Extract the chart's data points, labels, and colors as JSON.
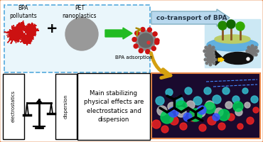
{
  "bg_color": "#ffffff",
  "dashed_box_color": "#55aadd",
  "dashed_box_fill": "#eaf6fb",
  "outer_border_color": "#e8874a",
  "arrow_green": "#22bb22",
  "arrow_blue_fill": "#b8d8ee",
  "arrow_blue_stroke": "#7aaabb",
  "arrow_gold": "#d4a010",
  "text_bpa": "BPA\npollutants",
  "text_pet": "PET\nnanoplastics",
  "text_cotransport": "co-transport of BPA",
  "text_adsorption": "BPA adsorption",
  "text_electrostatics": "electrostatics",
  "text_dispersion": "dispersion",
  "text_main": "Main stabilizing\nphysical effects are\nelectrostatics and\ndispersion",
  "red_blob_color": "#cc1111",
  "pet_gray": "#999999",
  "nano_gray": "#777777",
  "fish_color": "#111111",
  "gear_color": "#888888",
  "island_water": "#55aadd",
  "island_land": "#88bb44",
  "tree_dark": "#226600",
  "tree_trunk": "#885522",
  "mol_bg": "#1a0a2e",
  "figsize": [
    3.7,
    2.0
  ],
  "dpi": 100
}
